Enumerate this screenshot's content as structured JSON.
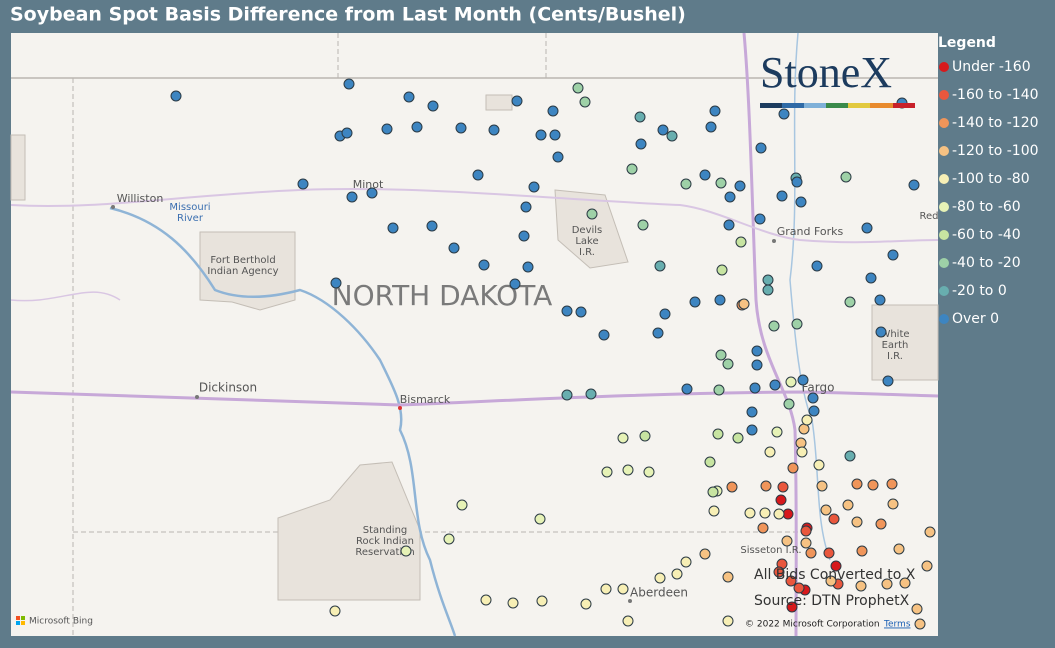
{
  "title": "Soybean Spot Basis Difference from Last Month (Cents/Bushel)",
  "legend": {
    "title": "Legend",
    "items": [
      {
        "label": "Under -160",
        "color": "#d7191c"
      },
      {
        "label": "-160 to -140",
        "color": "#e9573d"
      },
      {
        "label": "-140 to -120",
        "color": "#f0955a"
      },
      {
        "label": "-120 to -100",
        "color": "#f6c283"
      },
      {
        "label": "-100 to -80",
        "color": "#f7efb5"
      },
      {
        "label": "-80 to -60",
        "color": "#e6f2b6"
      },
      {
        "label": "-60 to -40",
        "color": "#c7e4a1"
      },
      {
        "label": "-40 to -20",
        "color": "#9ed1a7"
      },
      {
        "label": "-20 to 0",
        "color": "#68aeaf"
      },
      {
        "label": "Over 0",
        "color": "#3d85c1"
      }
    ]
  },
  "map_labels": [
    [
      "Williston"
    ],
    [
      "Missouri",
      "River"
    ],
    [
      "Minot"
    ],
    [
      "Fort Berthold",
      "Indian Agency"
    ],
    [
      "NORTH DAKOTA"
    ],
    [
      "Devils",
      "Lake",
      "I.R."
    ],
    [
      "Grand Forks"
    ],
    [
      "Red"
    ],
    [
      "White",
      "Earth",
      "I.R."
    ],
    [
      "Dickinson"
    ],
    [
      "Bismarck"
    ],
    [
      "Fargo"
    ],
    [
      "Standing",
      "Rock Indian",
      "Reservation"
    ],
    [
      "Sisseton I.R."
    ],
    [
      "Aberdeen"
    ]
  ],
  "logo": "StoneX",
  "notes": [
    "All Bids Converted to X",
    "Source: DTN ProphetX"
  ],
  "attribution": {
    "provider": "Microsoft Bing",
    "copyright": "© 2022 Microsoft Corporation",
    "terms": "Terms"
  }
}
